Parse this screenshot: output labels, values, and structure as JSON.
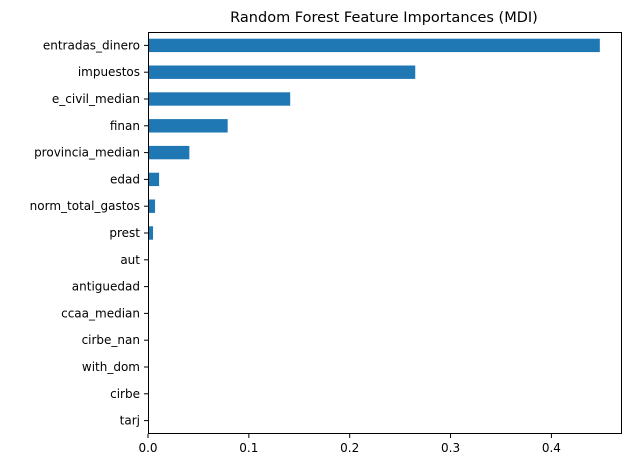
{
  "chart_data": {
    "type": "bar",
    "orientation": "horizontal",
    "title": "Random Forest Feature Importances (MDI)",
    "xlabel": "",
    "ylabel": "",
    "categories": [
      "entradas_dinero",
      "impuestos",
      "e_civil_median",
      "finan",
      "provincia_median",
      "edad",
      "norm_total_gastos",
      "prest",
      "aut",
      "antiguedad",
      "ccaa_median",
      "cirbe_nan",
      "with_dom",
      "cirbe",
      "tarj"
    ],
    "values": [
      0.448,
      0.265,
      0.141,
      0.079,
      0.041,
      0.011,
      0.007,
      0.005,
      0.0005,
      0.0004,
      0.0003,
      0.0002,
      0.0001,
      0.0001,
      0.0001
    ],
    "xlim": [
      0,
      0.47
    ],
    "xticks": [
      0.0,
      0.1,
      0.2,
      0.3,
      0.4
    ],
    "xtick_labels": [
      "0.0",
      "0.1",
      "0.2",
      "0.3",
      "0.4"
    ],
    "grid": false,
    "legend": "none",
    "bar_color": "#1f77b4"
  }
}
